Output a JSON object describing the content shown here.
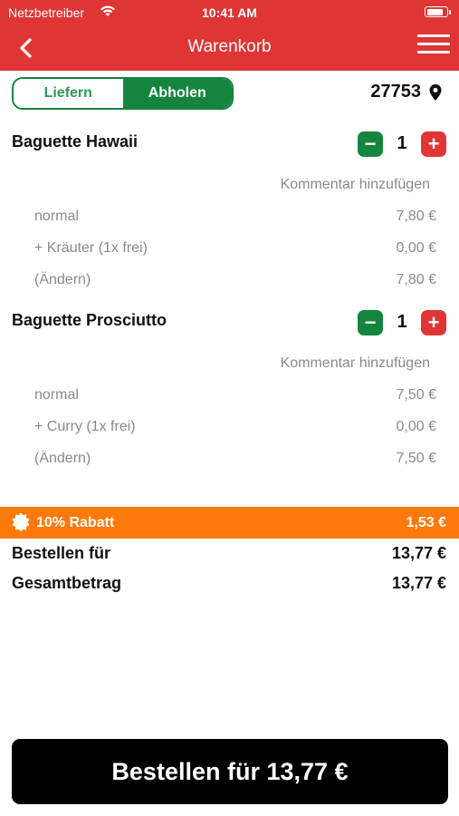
{
  "status_bar": {
    "carrier": "Netzbetreiber",
    "time": "10:41 AM",
    "battery_level": 0.85
  },
  "header": {
    "title": "Warenkorb",
    "back_icon": "chevron-left-icon",
    "menu_icon": "hamburger-menu-icon"
  },
  "mode_toggle": {
    "options": [
      "Liefern",
      "Abholen"
    ],
    "selected": "Abholen"
  },
  "location": {
    "zip": "27753",
    "icon": "map-pin-icon"
  },
  "cart": {
    "items": [
      {
        "name": "Baguette Hawaii",
        "quantity": "1",
        "comment_label": "Kommentar hinzufügen",
        "options": [
          {
            "label": "normal",
            "price": "7,80 €"
          },
          {
            "label": "+ Kräuter (1x frei)",
            "price": "0,00 €"
          },
          {
            "label": "(Ändern)",
            "price": "7,80 €"
          }
        ]
      },
      {
        "name": "Baguette Prosciutto",
        "quantity": "1",
        "comment_label": "Kommentar hinzufügen",
        "options": [
          {
            "label": "normal",
            "price": "7,50 €"
          },
          {
            "label": "+ Curry (1x frei)",
            "price": "0,00 €"
          },
          {
            "label": "(Ändern)",
            "price": "7,50 €"
          }
        ]
      }
    ]
  },
  "discount": {
    "label": "10% Rabatt",
    "value": "1,53 €",
    "icon": "badge-icon"
  },
  "summary": {
    "order_for_label": "Bestellen für",
    "order_for_value": "13,77 €",
    "total_label": "Gesamtbetrag",
    "total_value": "13,77 €"
  },
  "order_button": {
    "label": "Bestellen für 13,77 €"
  },
  "colors": {
    "header_red": "#df3535",
    "green": "#14843e",
    "orange": "#ff7a0a",
    "grey_text": "#8a8a8a"
  }
}
